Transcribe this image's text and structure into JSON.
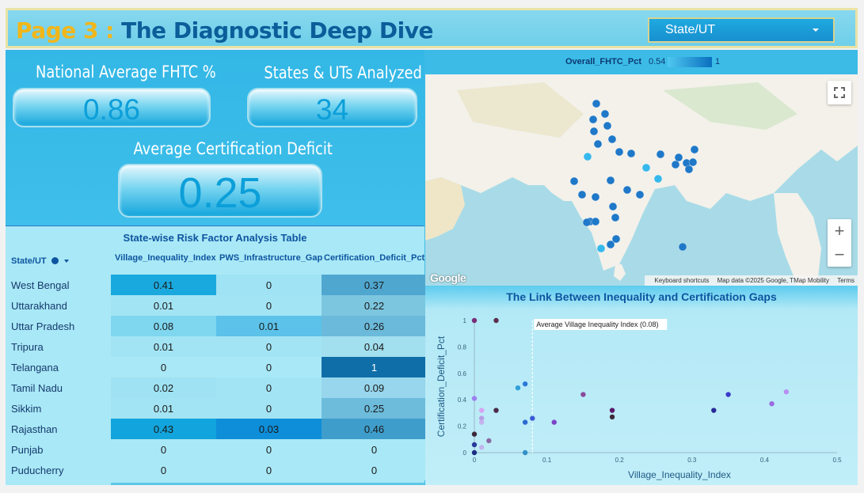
{
  "header": {
    "page_label": "Page 3 :",
    "title": "The Diagnostic Deep Dive",
    "filter_label": "State/UT"
  },
  "kpis": {
    "national_avg_label": "National Average FHTC %",
    "national_avg_value": "0.86",
    "states_label": "States & UTs Analyzed",
    "states_value": "34",
    "cert_deficit_label": "Average Certification Deficit",
    "cert_deficit_value": "0.25"
  },
  "table": {
    "title": "State-wise Risk Factor Analysis Table",
    "columns": [
      "State/UT",
      "Village_Inequality_Index",
      "PWS_Infrastructure_Gap",
      "Certification_Deficit_Pct"
    ],
    "rows": [
      {
        "state": "West Bengal",
        "vii": "0.41",
        "pws": "0",
        "cdp": "0.37",
        "vii_c": "#1aa9de",
        "pws_c": "#9fe3f4",
        "cdp_c": "#4fa7d0"
      },
      {
        "state": "Uttarakhand",
        "vii": "0.01",
        "pws": "0",
        "cdp": "0.22",
        "vii_c": "#a3e4f4",
        "pws_c": "#a3e4f4",
        "cdp_c": "#7cc6df"
      },
      {
        "state": "Uttar Pradesh",
        "vii": "0.08",
        "pws": "0.01",
        "cdp": "0.26",
        "vii_c": "#7fd6ef",
        "pws_c": "#5cc2e9",
        "cdp_c": "#6bbadb"
      },
      {
        "state": "Tripura",
        "vii": "0.01",
        "pws": "0",
        "cdp": "0.04",
        "vii_c": "#a3e4f4",
        "pws_c": "#a3e4f4",
        "cdp_c": "#a2dfef"
      },
      {
        "state": "Telangana",
        "vii": "0",
        "pws": "0",
        "cdp": "1",
        "vii_c": "#a9e8f6",
        "pws_c": "#a9e8f6",
        "cdp_c": "#0f6ea8"
      },
      {
        "state": "Tamil Nadu",
        "vii": "0.02",
        "pws": "0",
        "cdp": "0.09",
        "vii_c": "#9ee2f3",
        "pws_c": "#a3e4f4",
        "cdp_c": "#97d6ec"
      },
      {
        "state": "Sikkim",
        "vii": "0.01",
        "pws": "0",
        "cdp": "0.25",
        "vii_c": "#a3e4f4",
        "pws_c": "#a3e4f4",
        "cdp_c": "#6dbcdc"
      },
      {
        "state": "Rajasthan",
        "vii": "0.43",
        "pws": "0.03",
        "cdp": "0.46",
        "vii_c": "#12a4dc",
        "pws_c": "#0e8ed8",
        "cdp_c": "#3f9dcb"
      },
      {
        "state": "Punjab",
        "vii": "0",
        "pws": "0",
        "cdp": "0",
        "vii_c": "#a9e8f6",
        "pws_c": "#a9e8f6",
        "cdp_c": "#a9e8f6"
      },
      {
        "state": "Puducherry",
        "vii": "0",
        "pws": "0",
        "cdp": "0",
        "vii_c": "#a9e8f6",
        "pws_c": "#a9e8f6",
        "cdp_c": "#a9e8f6"
      }
    ]
  },
  "map": {
    "legend_label": "Overall_FHTC_Pct",
    "legend_min": "0.54",
    "legend_max": "1",
    "google_logo": "Google",
    "attribution_shortcuts": "Keyboard shortcuts",
    "attribution_data": "Map data ©2025 Google, TMap Mobility",
    "attribution_terms": "Terms",
    "zoom_in": "+",
    "zoom_out": "−",
    "colors": {
      "land": "#f3f1ea",
      "water": "#a8dbe7",
      "marker_dark": "#1f78c8",
      "marker_light": "#36b8ec"
    }
  },
  "chart_data": {
    "type": "scatter",
    "title": "The Link Between Inequality and Certification Gaps",
    "xlabel": "Village_Inequality_Index",
    "ylabel": "Certification_Deficit_Pct",
    "xlim": [
      0,
      0.5
    ],
    "ylim": [
      0,
      1
    ],
    "x_ticks": [
      "0",
      "0.1",
      "0.2",
      "0.3",
      "0.4",
      "0.5"
    ],
    "y_ticks": [
      "0",
      "0.2",
      "0.4",
      "0.6",
      "0.8",
      "1"
    ],
    "reference_line": {
      "x": 0.08,
      "label": "Average Village Inequality Index (0.08)"
    },
    "points": [
      {
        "x": 0,
        "y": 1,
        "color": "#7a2e78"
      },
      {
        "x": 0.03,
        "y": 1,
        "color": "#5a2f4e"
      },
      {
        "x": 0.0,
        "y": 0.41,
        "color": "#9d7ff0"
      },
      {
        "x": 0.01,
        "y": 0.32,
        "color": "#d6a4f2"
      },
      {
        "x": 0.03,
        "y": 0.32,
        "color": "#4b2a4a"
      },
      {
        "x": 0.01,
        "y": 0.26,
        "color": "#b69ee6"
      },
      {
        "x": 0.01,
        "y": 0.23,
        "color": "#c4b2ee"
      },
      {
        "x": 0,
        "y": 0.14,
        "color": "#3c2a3a"
      },
      {
        "x": 0.02,
        "y": 0.09,
        "color": "#8a6aa4"
      },
      {
        "x": 0,
        "y": 0.06,
        "color": "#2a3a9a"
      },
      {
        "x": 0.01,
        "y": 0.04,
        "color": "#c2b6ee"
      },
      {
        "x": 0,
        "y": 0.0,
        "color": "#1c2e84"
      },
      {
        "x": 0.06,
        "y": 0.49,
        "color": "#2f9fd8"
      },
      {
        "x": 0.07,
        "y": 0.52,
        "color": "#2b78d8"
      },
      {
        "x": 0.07,
        "y": 0.23,
        "color": "#2c6ad0"
      },
      {
        "x": 0.08,
        "y": 0.26,
        "color": "#3a5ad4"
      },
      {
        "x": 0.07,
        "y": 0.0,
        "color": "#3390c8"
      },
      {
        "x": 0.11,
        "y": 0.23,
        "color": "#7a44c8"
      },
      {
        "x": 0.15,
        "y": 0.44,
        "color": "#8a4a9a"
      },
      {
        "x": 0.19,
        "y": 0.32,
        "color": "#5a1a6a"
      },
      {
        "x": 0.19,
        "y": 0.27,
        "color": "#3d2a3a"
      },
      {
        "x": 0.33,
        "y": 0.32,
        "color": "#2a2a9a"
      },
      {
        "x": 0.35,
        "y": 0.44,
        "color": "#3b3bc8"
      },
      {
        "x": 0.41,
        "y": 0.37,
        "color": "#9a6ae0"
      },
      {
        "x": 0.43,
        "y": 0.46,
        "color": "#b890f0"
      }
    ]
  }
}
